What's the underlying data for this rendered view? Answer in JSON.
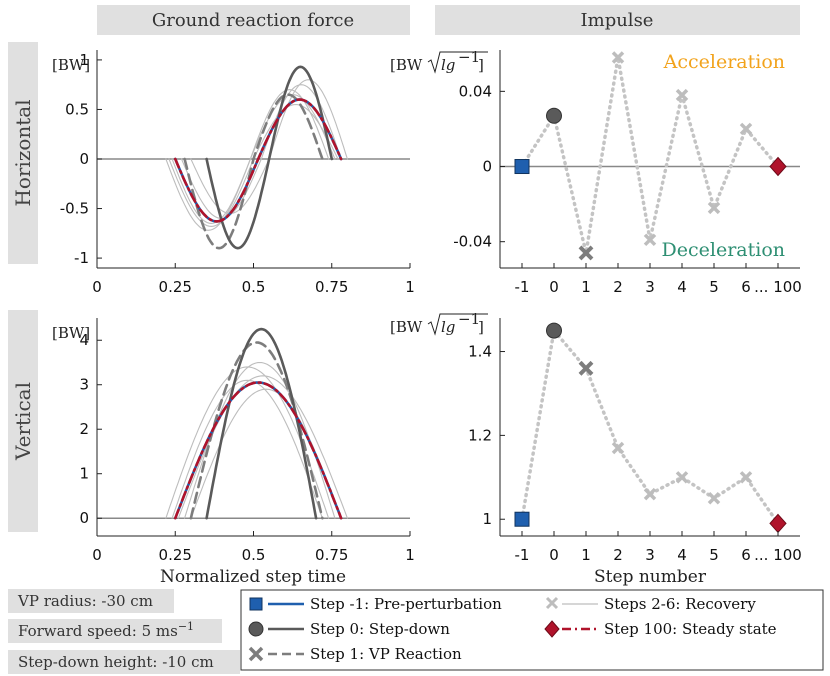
{
  "headers": {
    "left": "Ground reaction force",
    "right": "Impulse"
  },
  "row_labels": {
    "top": "Horizontal",
    "bottom": "Vertical"
  },
  "units": {
    "force": "[BW]",
    "impulse_prefix": "[BW",
    "impulse_sqrt": "lg",
    "impulse_exp": "−1",
    "impulse_suffix": "]"
  },
  "annotations": {
    "acceleration": "Acceleration",
    "deceleration": "Deceleration"
  },
  "axis_labels": {
    "x_left": "Normalized step time",
    "x_right": "Step number"
  },
  "info_boxes": {
    "vp_radius": "VP radius: -30 cm",
    "forward_speed": "Forward speed: 5 ms",
    "forward_speed_exp": "−1",
    "stepdown_height": "Step-down height: -10 cm"
  },
  "legend": [
    {
      "label": "Step -1:  Pre-perturbation"
    },
    {
      "label": "Step  0:  Step-down"
    },
    {
      "label": "Step  1:  VP Reaction"
    },
    {
      "label": "Steps 2-6: Recovery"
    },
    {
      "label": "Step  100: Steady state"
    }
  ],
  "colors": {
    "blue": "#1f5fae",
    "dark": "#5a5a5a",
    "mid": "#7d7d7d",
    "light": "#bdbdbd",
    "red": "#b0132b",
    "acc": "#f2a31c",
    "dec": "#2e8f73"
  },
  "chart_data": [
    {
      "type": "line",
      "title": "Ground reaction force",
      "ylabel": "Horizontal [BW]",
      "xlabel": "",
      "xlim": [
        0,
        1
      ],
      "ylim": [
        -1.1,
        1.1
      ],
      "xticks": [
        "0",
        "0.25",
        "0.5",
        "0.75",
        "1"
      ],
      "yticks": [
        "-1",
        "-0.5",
        "0",
        "0.5",
        "1"
      ],
      "series": [
        {
          "name": "Step -1",
          "style": "blue",
          "start": 0.25,
          "end": 0.78,
          "amp": 0.6,
          "neg": 0.63
        },
        {
          "name": "Step 100",
          "style": "red",
          "start": 0.25,
          "end": 0.78,
          "amp": 0.6,
          "neg": 0.63
        },
        {
          "name": "Step 0",
          "style": "dark",
          "start": 0.35,
          "end": 0.75,
          "amp": 0.93,
          "neg": 0.9
        },
        {
          "name": "Step 1",
          "style": "dash",
          "start": 0.28,
          "end": 0.72,
          "amp": 0.65,
          "neg": 0.9
        },
        {
          "name": "Step 2",
          "style": "light",
          "start": 0.22,
          "end": 0.76,
          "amp": 0.65,
          "neg": 0.72
        },
        {
          "name": "Step 3",
          "style": "light",
          "start": 0.3,
          "end": 0.8,
          "amp": 0.8,
          "neg": 0.55
        },
        {
          "name": "Step 4",
          "style": "light",
          "start": 0.24,
          "end": 0.74,
          "amp": 0.7,
          "neg": 0.65
        },
        {
          "name": "Step 5",
          "style": "light",
          "start": 0.27,
          "end": 0.78,
          "amp": 0.75,
          "neg": 0.6
        },
        {
          "name": "Step 6",
          "style": "light",
          "start": 0.23,
          "end": 0.77,
          "amp": 0.55,
          "neg": 0.68
        }
      ]
    },
    {
      "type": "line",
      "title": "Impulse",
      "ylabel": "Horizontal impulse",
      "categories": [
        "-1",
        "0",
        "1",
        "2",
        "3",
        "4",
        "5",
        "6",
        "... 100"
      ],
      "ylim": [
        -0.054,
        0.062
      ],
      "yticks": [
        "-0.04",
        "0",
        "0.04"
      ],
      "values": [
        0.0,
        0.027,
        -0.046,
        0.058,
        -0.039,
        0.038,
        -0.022,
        0.02,
        0.0
      ]
    },
    {
      "type": "line",
      "title": "",
      "ylabel": "Vertical [BW]",
      "xlabel": "Normalized step time",
      "xlim": [
        0,
        1
      ],
      "ylim": [
        -0.4,
        4.5
      ],
      "xticks": [
        "0",
        "0.25",
        "0.5",
        "0.75",
        "1"
      ],
      "yticks": [
        "0",
        "1",
        "2",
        "3",
        "4"
      ],
      "series": [
        {
          "name": "Step -1",
          "style": "blue",
          "start": 0.25,
          "end": 0.78,
          "peak": 3.05
        },
        {
          "name": "Step 100",
          "style": "red",
          "start": 0.25,
          "end": 0.78,
          "peak": 3.05
        },
        {
          "name": "Step 0",
          "style": "dark",
          "start": 0.35,
          "end": 0.7,
          "peak": 4.25
        },
        {
          "name": "Step 1",
          "style": "dash",
          "start": 0.3,
          "end": 0.72,
          "peak": 3.95
        },
        {
          "name": "Step 2",
          "style": "light",
          "start": 0.22,
          "end": 0.74,
          "peak": 3.4
        },
        {
          "name": "Step 3",
          "style": "light",
          "start": 0.26,
          "end": 0.8,
          "peak": 3.2
        },
        {
          "name": "Step 4",
          "style": "light",
          "start": 0.28,
          "end": 0.76,
          "peak": 3.5
        },
        {
          "name": "Step 5",
          "style": "light",
          "start": 0.24,
          "end": 0.72,
          "peak": 3.1
        },
        {
          "name": "Step 6",
          "style": "light",
          "start": 0.3,
          "end": 0.78,
          "peak": 2.9
        }
      ]
    },
    {
      "type": "line",
      "title": "",
      "ylabel": "Vertical impulse",
      "xlabel": "Step number",
      "categories": [
        "-1",
        "0",
        "1",
        "2",
        "3",
        "4",
        "5",
        "6",
        "... 100"
      ],
      "ylim": [
        0.96,
        1.48
      ],
      "yticks": [
        "1",
        "1.2",
        "1.4"
      ],
      "values": [
        1.0,
        1.45,
        1.36,
        1.17,
        1.06,
        1.1,
        1.05,
        1.1,
        0.99
      ]
    }
  ]
}
